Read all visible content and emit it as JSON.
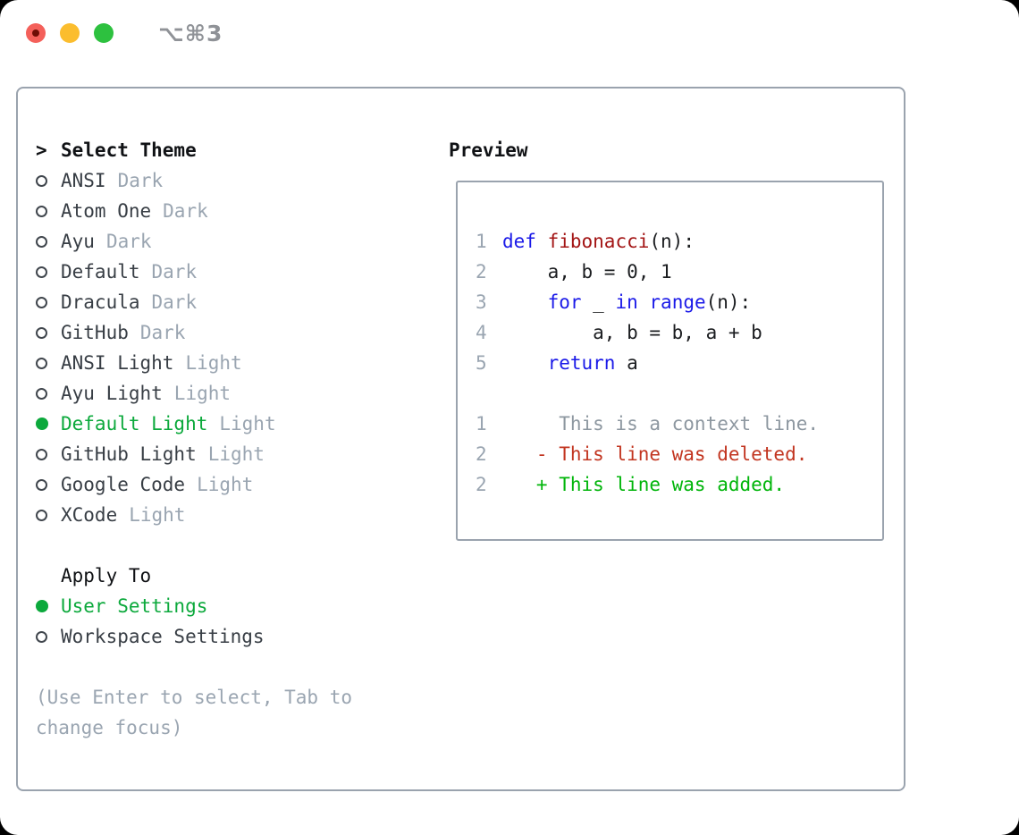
{
  "window": {
    "titlebar": {
      "shortcut": "⌥⌘3",
      "buttons": [
        "close",
        "minimize",
        "zoom"
      ]
    }
  },
  "theme_picker": {
    "title_marker": ">",
    "title": "Select Theme",
    "themes": [
      {
        "name": "ANSI",
        "variant": "Dark",
        "selected": false
      },
      {
        "name": "Atom One",
        "variant": "Dark",
        "selected": false
      },
      {
        "name": "Ayu",
        "variant": "Dark",
        "selected": false
      },
      {
        "name": "Default",
        "variant": "Dark",
        "selected": false
      },
      {
        "name": "Dracula",
        "variant": "Dark",
        "selected": false
      },
      {
        "name": "GitHub",
        "variant": "Dark",
        "selected": false
      },
      {
        "name": "ANSI Light",
        "variant": "Light",
        "selected": false
      },
      {
        "name": "Ayu Light",
        "variant": "Light",
        "selected": false
      },
      {
        "name": "Default Light",
        "variant": "Light",
        "selected": true
      },
      {
        "name": "GitHub Light",
        "variant": "Light",
        "selected": false
      },
      {
        "name": "Google Code",
        "variant": "Light",
        "selected": false
      },
      {
        "name": "XCode",
        "variant": "Light",
        "selected": false
      }
    ],
    "apply_to": {
      "title": "Apply To",
      "options": [
        {
          "name": "User Settings",
          "selected": true
        },
        {
          "name": "Workspace Settings",
          "selected": false
        }
      ]
    },
    "hint": "(Use Enter to select, Tab to change focus)"
  },
  "preview": {
    "title": "Preview",
    "lines": [
      {
        "num": "1",
        "segments": [
          {
            "t": "def",
            "c": "kw"
          },
          {
            "t": " ",
            "c": "plain"
          },
          {
            "t": "fibonacci",
            "c": "fn"
          },
          {
            "t": "(n):",
            "c": "plain"
          }
        ]
      },
      {
        "num": "2",
        "segments": [
          {
            "t": "    a, b = 0, 1",
            "c": "plain"
          }
        ]
      },
      {
        "num": "3",
        "segments": [
          {
            "t": "    ",
            "c": "plain"
          },
          {
            "t": "for",
            "c": "kw"
          },
          {
            "t": " _ ",
            "c": "plain"
          },
          {
            "t": "in",
            "c": "kw"
          },
          {
            "t": " ",
            "c": "plain"
          },
          {
            "t": "range",
            "c": "kw"
          },
          {
            "t": "(n):",
            "c": "plain"
          }
        ]
      },
      {
        "num": "4",
        "segments": [
          {
            "t": "        a, b = b, a + b",
            "c": "plain"
          }
        ]
      },
      {
        "num": "5",
        "segments": [
          {
            "t": "    ",
            "c": "plain"
          },
          {
            "t": "return",
            "c": "kw"
          },
          {
            "t": " a",
            "c": "plain"
          }
        ]
      },
      {
        "num": "",
        "segments": []
      },
      {
        "num": "1",
        "segments": [
          {
            "t": "     This is a context line.",
            "c": "ctx"
          }
        ]
      },
      {
        "num": "2",
        "segments": [
          {
            "t": "   - This line was deleted.",
            "c": "del"
          }
        ]
      },
      {
        "num": "2",
        "segments": [
          {
            "t": "   + This line was added.",
            "c": "add"
          }
        ]
      }
    ]
  },
  "colors": {
    "accent_green": "#0CA93C",
    "keyword_blue": "#1B1AE8",
    "function_red": "#A31515",
    "diff_deleted_red": "#C23520",
    "diff_added_green": "#00B50A",
    "context_gray": "#8D97A0",
    "line_number_gray": "#9AA5B1",
    "code_black": "#1B1D20",
    "name_dark": "#383E45",
    "variant_gray": "#9AA5B1",
    "traffic_red": "#F4605A",
    "traffic_yellow": "#FBBD2E",
    "traffic_green": "#2DC13F"
  }
}
